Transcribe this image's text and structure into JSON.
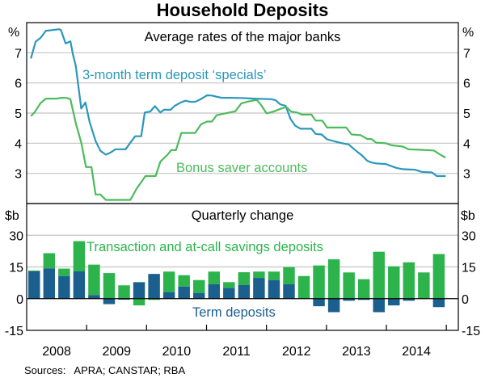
{
  "chart_data": [
    {
      "type": "line",
      "title": "Household Deposits",
      "panel_title": "Average rates of the major banks",
      "unit_left": "%",
      "unit_right": "%",
      "xlim": [
        2008.0,
        2015.2
      ],
      "ylim": [
        2,
        8
      ],
      "yticks": [
        3,
        4,
        5,
        6,
        7
      ],
      "grid": true,
      "series": [
        {
          "name": "3-month term deposit ‘specials’",
          "color": "#2b97ba",
          "points": [
            [
              2008.07,
              6.81
            ],
            [
              2008.15,
              7.37
            ],
            [
              2008.23,
              7.49
            ],
            [
              2008.32,
              7.73
            ],
            [
              2008.42,
              7.75
            ],
            [
              2008.54,
              7.78
            ],
            [
              2008.57,
              7.76
            ],
            [
              2008.65,
              7.31
            ],
            [
              2008.73,
              7.38
            ],
            [
              2008.77,
              6.96
            ],
            [
              2008.82,
              6.56
            ],
            [
              2008.91,
              5.15
            ],
            [
              2008.98,
              5.35
            ],
            [
              2009.05,
              4.7
            ],
            [
              2009.15,
              4.07
            ],
            [
              2009.23,
              3.75
            ],
            [
              2009.32,
              3.62
            ],
            [
              2009.4,
              3.69
            ],
            [
              2009.48,
              3.8
            ],
            [
              2009.65,
              3.8
            ],
            [
              2009.73,
              4.02
            ],
            [
              2009.81,
              4.23
            ],
            [
              2009.91,
              4.23
            ],
            [
              2009.97,
              5.02
            ],
            [
              2010.06,
              5.05
            ],
            [
              2010.14,
              5.23
            ],
            [
              2010.23,
              5.02
            ],
            [
              2010.29,
              5.11
            ],
            [
              2010.4,
              5.11
            ],
            [
              2010.47,
              5.24
            ],
            [
              2010.57,
              5.35
            ],
            [
              2010.65,
              5.41
            ],
            [
              2010.74,
              5.37
            ],
            [
              2010.82,
              5.38
            ],
            [
              2010.91,
              5.47
            ],
            [
              2011.01,
              5.59
            ],
            [
              2011.09,
              5.58
            ],
            [
              2011.17,
              5.54
            ],
            [
              2011.25,
              5.51
            ],
            [
              2011.58,
              5.5
            ],
            [
              2011.79,
              5.48
            ],
            [
              2012.08,
              5.46
            ],
            [
              2012.15,
              5.43
            ],
            [
              2012.23,
              5.29
            ],
            [
              2012.32,
              5.24
            ],
            [
              2012.4,
              4.81
            ],
            [
              2012.48,
              4.58
            ],
            [
              2012.57,
              4.48
            ],
            [
              2012.75,
              4.48
            ],
            [
              2012.82,
              4.31
            ],
            [
              2012.92,
              4.29
            ],
            [
              2013.01,
              4.13
            ],
            [
              2013.16,
              4.05
            ],
            [
              2013.26,
              4.0
            ],
            [
              2013.37,
              3.96
            ],
            [
              2013.44,
              3.84
            ],
            [
              2013.52,
              3.71
            ],
            [
              2013.59,
              3.6
            ],
            [
              2013.68,
              3.42
            ],
            [
              2013.75,
              3.36
            ],
            [
              2013.83,
              3.33
            ],
            [
              2013.99,
              3.31
            ],
            [
              2014.07,
              3.25
            ],
            [
              2014.17,
              3.18
            ],
            [
              2014.27,
              3.14
            ],
            [
              2014.48,
              3.12
            ],
            [
              2014.59,
              3.05
            ],
            [
              2014.76,
              3.03
            ],
            [
              2014.84,
              2.91
            ],
            [
              2014.99,
              2.91
            ]
          ]
        },
        {
          "name": "Bonus saver accounts",
          "color": "#4cbb5c",
          "points": [
            [
              2008.07,
              4.9
            ],
            [
              2008.13,
              5.02
            ],
            [
              2008.23,
              5.33
            ],
            [
              2008.32,
              5.48
            ],
            [
              2008.51,
              5.48
            ],
            [
              2008.58,
              5.51
            ],
            [
              2008.67,
              5.5
            ],
            [
              2008.73,
              5.46
            ],
            [
              2008.82,
              4.66
            ],
            [
              2008.91,
              4.02
            ],
            [
              2008.99,
              3.21
            ],
            [
              2009.08,
              3.21
            ],
            [
              2009.15,
              2.3
            ],
            [
              2009.23,
              2.3
            ],
            [
              2009.32,
              2.12
            ],
            [
              2009.73,
              2.12
            ],
            [
              2009.83,
              2.48
            ],
            [
              2009.98,
              2.91
            ],
            [
              2010.15,
              2.91
            ],
            [
              2010.23,
              3.39
            ],
            [
              2010.35,
              3.62
            ],
            [
              2010.41,
              3.77
            ],
            [
              2010.49,
              3.77
            ],
            [
              2010.58,
              4.34
            ],
            [
              2010.81,
              4.34
            ],
            [
              2010.91,
              4.63
            ],
            [
              2011.01,
              4.72
            ],
            [
              2011.09,
              4.72
            ],
            [
              2011.17,
              4.93
            ],
            [
              2011.27,
              4.97
            ],
            [
              2011.38,
              5.02
            ],
            [
              2011.48,
              5.06
            ],
            [
              2011.58,
              5.32
            ],
            [
              2011.69,
              5.38
            ],
            [
              2011.84,
              5.44
            ],
            [
              2011.92,
              5.24
            ],
            [
              2012.0,
              4.99
            ],
            [
              2012.13,
              5.06
            ],
            [
              2012.23,
              5.14
            ],
            [
              2012.33,
              5.2
            ],
            [
              2012.41,
              5.05
            ],
            [
              2012.51,
              5.02
            ],
            [
              2012.59,
              4.95
            ],
            [
              2012.75,
              4.95
            ],
            [
              2012.82,
              4.75
            ],
            [
              2012.93,
              4.75
            ],
            [
              2013.01,
              4.52
            ],
            [
              2013.33,
              4.52
            ],
            [
              2013.42,
              4.29
            ],
            [
              2013.57,
              4.27
            ],
            [
              2013.68,
              4.14
            ],
            [
              2013.75,
              4.14
            ],
            [
              2013.83,
              4.02
            ],
            [
              2013.99,
              4.0
            ],
            [
              2014.09,
              3.93
            ],
            [
              2014.27,
              3.89
            ],
            [
              2014.37,
              3.8
            ],
            [
              2014.58,
              3.78
            ],
            [
              2014.79,
              3.76
            ],
            [
              2014.89,
              3.63
            ],
            [
              2014.97,
              3.54
            ],
            [
              2014.99,
              3.54
            ]
          ]
        }
      ]
    },
    {
      "type": "bar",
      "stacked": true,
      "panel_title": "Quarterly change",
      "unit_left": "$b",
      "unit_right": "$b",
      "ylim": [
        -15,
        45
      ],
      "yticks": [
        -15,
        0,
        15,
        30
      ],
      "xtick_labels": [
        "2008",
        "2009",
        "2010",
        "2011",
        "2012",
        "2013",
        "2014"
      ],
      "grid": true,
      "categories": [
        "2008 Q1",
        "2008 Q2",
        "2008 Q3",
        "2008 Q4",
        "2009 Q1",
        "2009 Q2",
        "2009 Q3",
        "2009 Q4",
        "2010 Q1",
        "2010 Q2",
        "2010 Q3",
        "2010 Q4",
        "2011 Q1",
        "2011 Q2",
        "2011 Q3",
        "2011 Q4",
        "2012 Q1",
        "2012 Q2",
        "2012 Q3",
        "2012 Q4",
        "2013 Q1",
        "2013 Q2",
        "2013 Q3",
        "2013 Q4",
        "2014 Q1",
        "2014 Q2",
        "2014 Q3",
        "2014 Q4"
      ],
      "series": [
        {
          "name": "Term deposits",
          "color": "#1b5f8f",
          "values": [
            12.9,
            14.3,
            10.7,
            12.9,
            1.7,
            -2.6,
            -0.5,
            7.8,
            11.7,
            3.1,
            5.7,
            2.7,
            6.8,
            5.0,
            6.4,
            9.8,
            8.8,
            6.8,
            0.0,
            -3.6,
            -6.4,
            -1.0,
            -0.6,
            -6.4,
            -3.2,
            -1.0,
            -0.1,
            -4.0
          ]
        },
        {
          "name": "Transaction and at-call savings deposits",
          "color": "#2db34c",
          "values": [
            0.4,
            7.2,
            3.5,
            14.3,
            14.4,
            12.1,
            6.3,
            -3.2,
            -0.6,
            9.7,
            5.4,
            6.1,
            6.0,
            2.8,
            6.1,
            3.0,
            4.0,
            8.1,
            10.7,
            15.7,
            18.6,
            12.4,
            9.2,
            22.2,
            15.3,
            17.2,
            12.4,
            21.1
          ]
        }
      ]
    }
  ],
  "footer": {
    "sources": "Sources:   APRA; CANSTAR; RBA"
  }
}
